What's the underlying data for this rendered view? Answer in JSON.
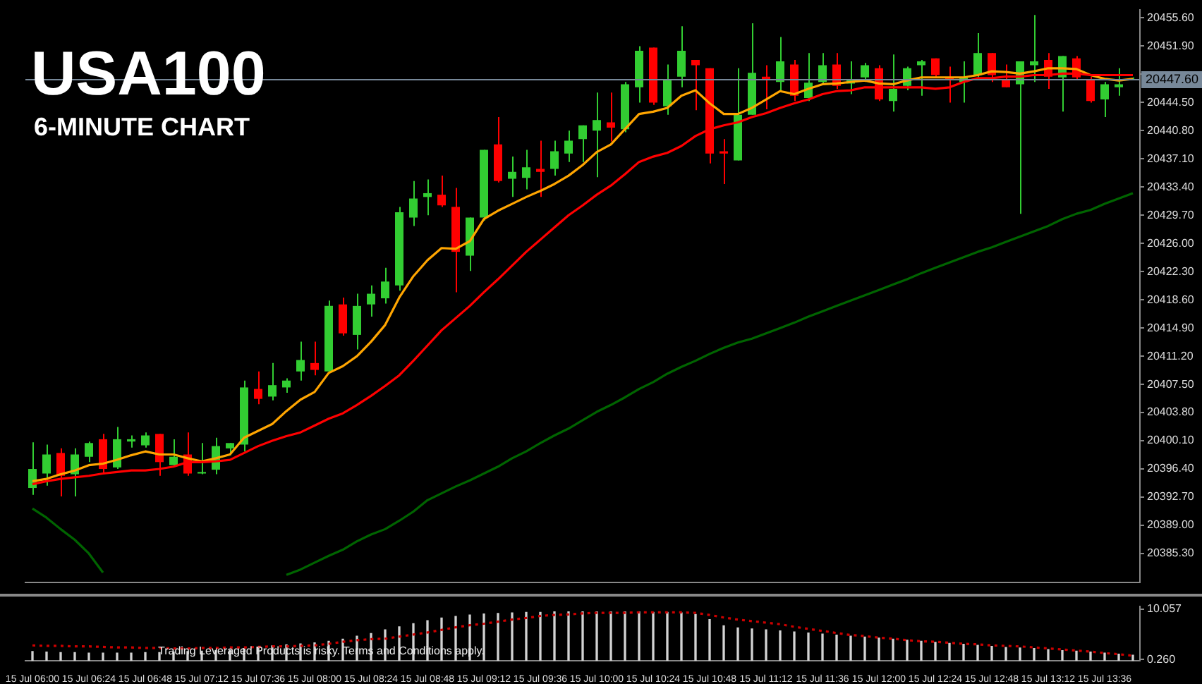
{
  "chart_data": [
    {
      "type": "candlestick",
      "title": "USA100",
      "subtitle": "6-MINUTE CHART",
      "categories": [
        null,
        null,
        null,
        null,
        null,
        null,
        null,
        null,
        null,
        null,
        null,
        null,
        null,
        null,
        null,
        null,
        null,
        null,
        null,
        null,
        null,
        null,
        null,
        null,
        null,
        null,
        null,
        null,
        null,
        null,
        null,
        null,
        null,
        null,
        null,
        null,
        null,
        null,
        null,
        null,
        null,
        null,
        null,
        null,
        null,
        null,
        null,
        null,
        null,
        null,
        null,
        null,
        null,
        null,
        null,
        null,
        null,
        null,
        null,
        null,
        null,
        null,
        null,
        null,
        null,
        null,
        null,
        null,
        null,
        null,
        null,
        null,
        null,
        null,
        null,
        null,
        null,
        null,
        null
      ],
      "ohlc": [
        [
          20393.9,
          20399.9,
          20393.0,
          20396.4
        ],
        [
          20395.8,
          20399.6,
          20394.2,
          20398.3
        ],
        [
          20398.5,
          20399.1,
          20392.8,
          20395.5
        ],
        [
          20395.7,
          20399.1,
          20392.8,
          20398.3
        ],
        [
          20398.0,
          20400.0,
          20397.3,
          20399.8
        ],
        [
          20400.3,
          20401.0,
          20395.7,
          20396.4
        ],
        [
          20396.6,
          20401.9,
          20396.4,
          20400.3
        ],
        [
          20400.0,
          20400.8,
          20399.2,
          20400.3
        ],
        [
          20399.5,
          20401.2,
          20399.2,
          20400.8
        ],
        [
          20401.0,
          20401.0,
          20395.5,
          20397.3
        ],
        [
          20396.9,
          20400.3,
          20396.9,
          20398.0
        ],
        [
          20398.3,
          20401.2,
          20395.5,
          20395.8
        ],
        [
          20395.8,
          20399.8,
          20395.7,
          20396.0
        ],
        [
          20396.3,
          20400.5,
          20395.7,
          20399.4
        ],
        [
          20399.1,
          20399.8,
          20398.2,
          20399.8
        ],
        [
          20399.6,
          20408.0,
          20398.7,
          20407.1
        ],
        [
          20406.9,
          20409.2,
          20404.9,
          20405.6
        ],
        [
          20405.9,
          20410.3,
          20405.4,
          20407.4
        ],
        [
          20407.1,
          20408.3,
          20406.4,
          20408.0
        ],
        [
          20409.2,
          20413.1,
          20408.0,
          20410.7
        ],
        [
          20410.3,
          20413.1,
          20408.7,
          20409.4
        ],
        [
          20409.2,
          20418.5,
          20409.2,
          20417.8
        ],
        [
          20418.0,
          20418.9,
          20413.9,
          20414.2
        ],
        [
          20414.0,
          20419.4,
          20412.1,
          20417.8
        ],
        [
          20418.0,
          20420.5,
          20416.4,
          20419.4
        ],
        [
          20418.8,
          20422.8,
          20418.1,
          20421.0
        ],
        [
          20420.5,
          20430.8,
          20419.8,
          20430.1
        ],
        [
          20429.4,
          20434.2,
          20428.3,
          20431.9
        ],
        [
          20432.1,
          20434.4,
          20429.7,
          20432.6
        ],
        [
          20432.4,
          20434.9,
          20430.8,
          20431.0
        ],
        [
          20430.8,
          20433.3,
          20419.6,
          20424.9
        ],
        [
          20424.4,
          20429.4,
          20422.4,
          20429.4
        ],
        [
          20429.4,
          20438.3,
          20429.0,
          20438.3
        ],
        [
          20439.0,
          20442.6,
          20434.0,
          20434.2
        ],
        [
          20434.5,
          20437.4,
          20432.1,
          20435.4
        ],
        [
          20434.6,
          20438.3,
          20433.1,
          20436.0
        ],
        [
          20435.8,
          20439.5,
          20432.1,
          20435.4
        ],
        [
          20435.8,
          20439.5,
          20434.9,
          20438.1
        ],
        [
          20437.8,
          20440.8,
          20436.7,
          20439.5
        ],
        [
          20439.7,
          20441.5,
          20436.7,
          20441.5
        ],
        [
          20440.8,
          20445.8,
          20434.7,
          20442.2
        ],
        [
          20441.9,
          20445.8,
          20439.4,
          20441.2
        ],
        [
          20441.0,
          20447.2,
          20440.6,
          20446.9
        ],
        [
          20446.5,
          20451.9,
          20444.5,
          20451.3
        ],
        [
          20451.7,
          20451.7,
          20444.2,
          20444.5
        ],
        [
          20444.0,
          20449.5,
          20442.9,
          20447.4
        ],
        [
          20447.9,
          20454.5,
          20446.5,
          20451.3
        ],
        [
          20450.1,
          20450.1,
          20443.5,
          20449.4
        ],
        [
          20449.0,
          20449.0,
          20436.5,
          20437.8
        ],
        [
          20438.1,
          20439.7,
          20433.8,
          20437.8
        ],
        [
          20436.9,
          20449.0,
          20436.9,
          20442.9
        ],
        [
          20442.9,
          20454.9,
          20442.9,
          20448.4
        ],
        [
          20447.9,
          20449.4,
          20443.6,
          20447.4
        ],
        [
          20447.2,
          20453.1,
          20446.0,
          20449.9
        ],
        [
          20449.5,
          20450.1,
          20444.7,
          20445.4
        ],
        [
          20445.1,
          20451.0,
          20444.7,
          20447.1
        ],
        [
          20447.2,
          20451.0,
          20446.9,
          20449.4
        ],
        [
          20449.5,
          20451.0,
          20446.3,
          20446.7
        ],
        [
          20447.0,
          20449.9,
          20445.6,
          20447.4
        ],
        [
          20447.8,
          20449.7,
          20447.2,
          20449.4
        ],
        [
          20449.0,
          20449.4,
          20444.7,
          20444.9
        ],
        [
          20444.7,
          20450.8,
          20443.3,
          20446.3
        ],
        [
          20446.7,
          20449.2,
          20446.1,
          20449.0
        ],
        [
          20449.4,
          20450.1,
          20445.4,
          20449.9
        ],
        [
          20450.3,
          20450.3,
          20447.8,
          20448.1
        ],
        [
          20447.8,
          20449.2,
          20444.5,
          20447.6
        ],
        [
          20447.2,
          20449.9,
          20444.5,
          20447.8
        ],
        [
          20448.1,
          20453.6,
          20447.8,
          20451.0
        ],
        [
          20451.0,
          20451.0,
          20447.2,
          20448.1
        ],
        [
          20447.6,
          20449.5,
          20446.5,
          20446.5
        ],
        [
          20446.9,
          20449.9,
          20429.9,
          20449.9
        ],
        [
          20449.4,
          20456.0,
          20447.2,
          20449.9
        ],
        [
          20450.1,
          20451.0,
          20446.3,
          20447.9
        ],
        [
          20447.8,
          20450.6,
          20443.3,
          20450.6
        ],
        [
          20450.3,
          20450.6,
          20447.4,
          20447.8
        ],
        [
          20447.4,
          20447.9,
          20444.5,
          20444.7
        ],
        [
          20444.9,
          20447.2,
          20442.6,
          20446.9
        ],
        [
          20446.5,
          20449.0,
          20445.4,
          20446.9
        ],
        [
          20447.4,
          20447.8,
          20447.4,
          20447.6
        ]
      ],
      "colors": [
        "#32cd32",
        "#32cd32",
        "#ff0000",
        "#32cd32",
        "#32cd32",
        "#ff0000",
        "#32cd32",
        "#32cd32",
        "#32cd32",
        "#ff0000",
        "#32cd32",
        "#ff0000",
        "#32cd32",
        "#32cd32",
        "#32cd32",
        "#32cd32",
        "#ff0000",
        "#32cd32",
        "#32cd32",
        "#32cd32",
        "#ff0000",
        "#32cd32",
        "#ff0000",
        "#32cd32",
        "#32cd32",
        "#32cd32",
        "#32cd32",
        "#32cd32",
        "#32cd32",
        "#ff0000",
        "#ff0000",
        "#32cd32",
        "#32cd32",
        "#ff0000",
        "#32cd32",
        "#32cd32",
        "#ff0000",
        "#32cd32",
        "#32cd32",
        "#32cd32",
        "#32cd32",
        "#ff0000",
        "#32cd32",
        "#32cd32",
        "#ff0000",
        "#32cd32",
        "#32cd32",
        "#ff0000",
        "#ff0000",
        "#ff0000",
        "#32cd32",
        "#32cd32",
        "#ff0000",
        "#32cd32",
        "#ff0000",
        "#32cd32",
        "#32cd32",
        "#ff0000",
        "#32cd32",
        "#32cd32",
        "#ff0000",
        "#32cd32",
        "#32cd32",
        "#32cd32",
        "#ff0000",
        "#ff0000",
        "#32cd32",
        "#32cd32",
        "#ff0000",
        "#ff0000",
        "#32cd32",
        "#32cd32",
        "#ff0000",
        "#32cd32",
        "#ff0000",
        "#ff0000",
        "#32cd32",
        "#32cd32",
        "#32cd32"
      ],
      "series": [
        {
          "type": "line",
          "color": "#006400",
          "values": [
            20391.2,
            20390.0,
            20388.5,
            20387.1,
            20385.3,
            20382.8,
            null,
            null,
            null,
            null,
            null,
            null,
            null,
            null,
            null,
            null,
            null,
            null,
            20382.5,
            20383.2,
            20384.1,
            20385.0,
            20385.8,
            20386.9,
            20387.8,
            20388.5,
            20389.6,
            20390.8,
            20392.3,
            20393.2,
            20394.1,
            20394.9,
            20395.8,
            20396.7,
            20397.8,
            20398.7,
            20399.8,
            20400.8,
            20401.7,
            20402.8,
            20403.9,
            20404.8,
            20405.8,
            20406.9,
            20407.8,
            20408.9,
            20409.8,
            20410.6,
            20411.5,
            20412.3,
            20413.0,
            20413.5,
            20414.2,
            20414.9,
            20415.6,
            20416.4,
            20417.1,
            20417.8,
            20418.5,
            20419.2,
            20419.9,
            20420.6,
            20421.3,
            20422.1,
            20422.8,
            20423.5,
            20424.2,
            20424.9,
            20425.5,
            20426.2,
            20426.9,
            20427.6,
            20428.3,
            20429.2,
            20429.9,
            20430.4,
            20431.2,
            20431.9,
            20432.6
          ]
        },
        {
          "type": "line",
          "color": "#ff0000",
          "values": [
            20394.4,
            20394.8,
            20395.1,
            20395.3,
            20395.5,
            20395.8,
            20396.0,
            20396.2,
            20396.2,
            20396.4,
            20396.7,
            20397.3,
            20397.3,
            20397.4,
            20397.6,
            20398.5,
            20399.4,
            20400.1,
            20400.7,
            20401.2,
            20402.1,
            20403.0,
            20403.7,
            20404.8,
            20406.0,
            20407.3,
            20408.7,
            20410.6,
            20412.6,
            20414.6,
            20416.2,
            20417.8,
            20419.6,
            20421.3,
            20423.1,
            20424.9,
            20426.5,
            20428.1,
            20429.7,
            20431.0,
            20432.4,
            20433.6,
            20435.1,
            20436.7,
            20437.4,
            20437.9,
            20438.8,
            20440.1,
            20441.0,
            20441.5,
            20441.9,
            20442.6,
            20443.1,
            20443.8,
            20444.4,
            20444.9,
            20445.6,
            20446.0,
            20446.1,
            20446.5,
            20446.5,
            20446.5,
            20446.5,
            20446.5,
            20446.3,
            20446.5,
            20447.2,
            20447.7,
            20447.7,
            20447.9,
            20447.9,
            20448.1,
            20448.1,
            20448.3,
            20448.3,
            20448.1,
            20448.1,
            20448.1,
            20448.1
          ]
        },
        {
          "type": "line",
          "color": "#ffa500",
          "values": [
            20394.8,
            20395.1,
            20395.7,
            20396.2,
            20396.9,
            20397.1,
            20397.6,
            20398.2,
            20398.7,
            20398.3,
            20398.3,
            20397.8,
            20397.4,
            20397.8,
            20398.3,
            20400.5,
            20401.4,
            20402.3,
            20404.0,
            20405.5,
            20406.5,
            20409.0,
            20409.9,
            20411.2,
            20413.1,
            20415.3,
            20418.9,
            20421.7,
            20423.8,
            20425.4,
            20425.3,
            20426.3,
            20429.2,
            20430.3,
            20431.2,
            20432.1,
            20432.9,
            20433.8,
            20434.9,
            20436.3,
            20438.0,
            20439.0,
            20441.0,
            20443.0,
            20443.3,
            20443.8,
            20445.4,
            20446.1,
            20444.4,
            20443.0,
            20443.0,
            20443.8,
            20444.9,
            20446.0,
            20445.6,
            20446.3,
            20446.9,
            20447.0,
            20447.2,
            20447.4,
            20447.0,
            20446.9,
            20447.4,
            20447.8,
            20447.8,
            20447.8,
            20447.8,
            20448.1,
            20448.6,
            20448.5,
            20448.3,
            20448.6,
            20449.0,
            20449.0,
            20448.9,
            20448.1,
            20447.6,
            20447.4,
            20447.6
          ]
        }
      ],
      "ylim": [
        20381.5,
        20456.7
      ],
      "yticks": [
        {
          "value": 20455.6,
          "label": "20455.60"
        },
        {
          "value": 20451.9,
          "label": "20451.90"
        },
        {
          "value": 20448.2,
          "label": null
        },
        {
          "value": 20444.5,
          "label": "20444.50"
        },
        {
          "value": 20440.8,
          "label": "20440.80"
        },
        {
          "value": 20437.1,
          "label": "20437.10"
        },
        {
          "value": 20433.4,
          "label": "20433.40"
        },
        {
          "value": 20429.7,
          "label": "20429.70"
        },
        {
          "value": 20426.0,
          "label": "20426.00"
        },
        {
          "value": 20422.3,
          "label": "20422.30"
        },
        {
          "value": 20418.6,
          "label": "20418.60"
        },
        {
          "value": 20414.9,
          "label": "20414.90"
        },
        {
          "value": 20411.2,
          "label": "20411.20"
        },
        {
          "value": 20407.5,
          "label": "20407.50"
        },
        {
          "value": 20403.8,
          "label": "20403.80"
        },
        {
          "value": 20400.1,
          "label": "20400.10"
        },
        {
          "value": 20396.4,
          "label": "20396.40"
        },
        {
          "value": 20392.7,
          "label": "20392.70"
        },
        {
          "value": 20389.0,
          "label": "20389.00"
        },
        {
          "value": 20385.3,
          "label": "20385.30"
        }
      ],
      "ref_lines": [
        {
          "axis": "y",
          "value": 20447.6,
          "label": "20447.60",
          "color": "#778899"
        }
      ],
      "tick_labels": "y"
    },
    {
      "type": "bar",
      "categories": [
        "15 Jul 06:00",
        null,
        null,
        null,
        "15 Jul 06:24",
        null,
        null,
        null,
        "15 Jul 06:48",
        null,
        null,
        null,
        "15 Jul 07:12",
        null,
        null,
        null,
        "15 Jul 07:36",
        null,
        null,
        null,
        "15 Jul 08:00",
        null,
        null,
        null,
        "15 Jul 08:24",
        null,
        null,
        null,
        "15 Jul 08:48",
        null,
        null,
        null,
        "15 Jul 09:12",
        null,
        null,
        null,
        "15 Jul 09:36",
        null,
        null,
        null,
        "15 Jul 10:00",
        null,
        null,
        null,
        "15 Jul 10:24",
        null,
        null,
        null,
        "15 Jul 10:48",
        null,
        null,
        null,
        "15 Jul 11:12",
        null,
        null,
        null,
        "15 Jul 11:36",
        null,
        null,
        null,
        "15 Jul 12:00",
        null,
        null,
        null,
        "15 Jul 12:24",
        null,
        null,
        null,
        "15 Jul 12:48",
        null,
        null,
        null,
        "15 Jul 13:12",
        null,
        null,
        null,
        "15 Jul 13:36",
        null,
        null
      ],
      "series": [
        {
          "color": "#d3d3d3",
          "values": [
            1.8,
            1.7,
            1.6,
            1.6,
            1.5,
            1.5,
            1.5,
            1.5,
            1.6,
            1.6,
            1.7,
            1.8,
            1.9,
            2.0,
            2.1,
            2.4,
            2.6,
            2.9,
            3.1,
            3.3,
            3.5,
            3.8,
            4.2,
            4.8,
            5.3,
            6.0,
            6.6,
            7.2,
            7.8,
            8.3,
            8.6,
            8.9,
            9.1,
            9.2,
            9.3,
            9.4,
            9.4,
            9.5,
            9.5,
            9.5,
            9.5,
            9.5,
            9.5,
            9.5,
            9.4,
            9.4,
            9.3,
            9.0,
            8.0,
            6.8,
            6.4,
            6.2,
            6.0,
            5.8,
            5.6,
            5.4,
            5.2,
            5.0,
            4.8,
            4.6,
            4.4,
            4.2,
            4.0,
            3.8,
            3.6,
            3.4,
            3.2,
            3.0,
            2.8,
            2.6,
            2.5,
            2.4,
            2.2,
            2.0,
            1.9,
            1.7,
            1.5,
            1.3,
            1.1
          ]
        },
        {
          "type": "line",
          "color": "#cc0000",
          "line_style": "dotted",
          "values": [
            3.0,
            2.9,
            2.9,
            2.8,
            2.8,
            2.7,
            2.6,
            2.6,
            2.5,
            2.5,
            2.4,
            2.4,
            2.5,
            2.5,
            2.6,
            2.6,
            2.7,
            2.8,
            2.8,
            2.9,
            3.0,
            3.3,
            3.7,
            4.0,
            4.2,
            4.3,
            4.7,
            5.1,
            5.5,
            6.0,
            6.5,
            6.9,
            7.2,
            7.6,
            8.0,
            8.3,
            8.7,
            8.9,
            9.0,
            9.2,
            9.3,
            9.3,
            9.3,
            9.4,
            9.4,
            9.4,
            9.4,
            9.3,
            8.9,
            8.4,
            8.0,
            7.7,
            7.4,
            7.1,
            6.6,
            6.2,
            5.8,
            5.4,
            5.0,
            4.8,
            4.5,
            4.3,
            4.0,
            3.8,
            3.7,
            3.5,
            3.3,
            3.2,
            3.0,
            2.9,
            2.8,
            2.6,
            2.4,
            2.2,
            2.0,
            1.8,
            1.5,
            1.3,
            1.0
          ]
        }
      ],
      "ylim": [
        0,
        10.6
      ],
      "yticks": [
        {
          "value": 0.26,
          "label": "0.260"
        },
        10.057
      ],
      "annotations": [
        "Trading Leveraged Products is risky. Terms and Conditions apply."
      ]
    }
  ]
}
